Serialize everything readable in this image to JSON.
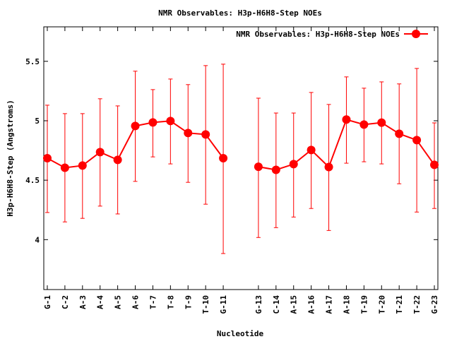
{
  "chart_data": {
    "type": "line",
    "title": "NMR Observables: H3p-H6H8-Step NOEs",
    "xlabel": "Nucleotide",
    "ylabel": "H3p-H6H8-Step (Angstroms)",
    "xlim": [
      0.8,
      23.2
    ],
    "ylim": [
      3.58,
      5.79
    ],
    "yticks": [
      4,
      4.5,
      5,
      5.5
    ],
    "ytick_labels": [
      "4",
      "4.5",
      "5",
      "5.5"
    ],
    "grid": false,
    "legend": {
      "position": "top-right",
      "entries": [
        "NMR Observables: H3p-H6H8-Step NOEs"
      ]
    },
    "color": "#ff0000",
    "categories": [
      "G-1",
      "C-2",
      "A-3",
      "A-4",
      "A-5",
      "A-6",
      "T-7",
      "T-8",
      "T-9",
      "T-10",
      "G-11",
      "G-13",
      "C-14",
      "A-15",
      "A-16",
      "A-17",
      "A-18",
      "T-19",
      "T-20",
      "T-21",
      "T-22",
      "G-23"
    ],
    "x": [
      1,
      2,
      3,
      4,
      5,
      6,
      7,
      8,
      9,
      10,
      11,
      13,
      14,
      15,
      16,
      17,
      18,
      19,
      20,
      21,
      22,
      23
    ],
    "series": [
      {
        "name": "NMR Observables: H3p-H6H8-Step NOEs",
        "values": [
          4.685,
          4.605,
          4.623,
          4.736,
          4.671,
          4.956,
          4.986,
          4.998,
          4.897,
          4.885,
          4.685,
          4.613,
          4.587,
          4.635,
          4.754,
          4.611,
          5.01,
          4.968,
          4.984,
          4.891,
          4.837,
          4.629
        ],
        "err_high": [
          5.131,
          5.06,
          5.06,
          5.185,
          5.125,
          5.417,
          5.262,
          5.351,
          5.304,
          5.464,
          5.476,
          5.19,
          5.065,
          5.065,
          5.238,
          5.137,
          5.369,
          5.274,
          5.327,
          5.31,
          5.44,
          4.982
        ],
        "err_low": [
          4.228,
          4.149,
          4.179,
          4.282,
          4.216,
          4.49,
          4.696,
          4.637,
          4.482,
          4.298,
          3.883,
          4.018,
          4.101,
          4.19,
          4.262,
          4.077,
          4.643,
          4.655,
          4.637,
          4.47,
          4.232,
          4.262
        ]
      }
    ]
  }
}
